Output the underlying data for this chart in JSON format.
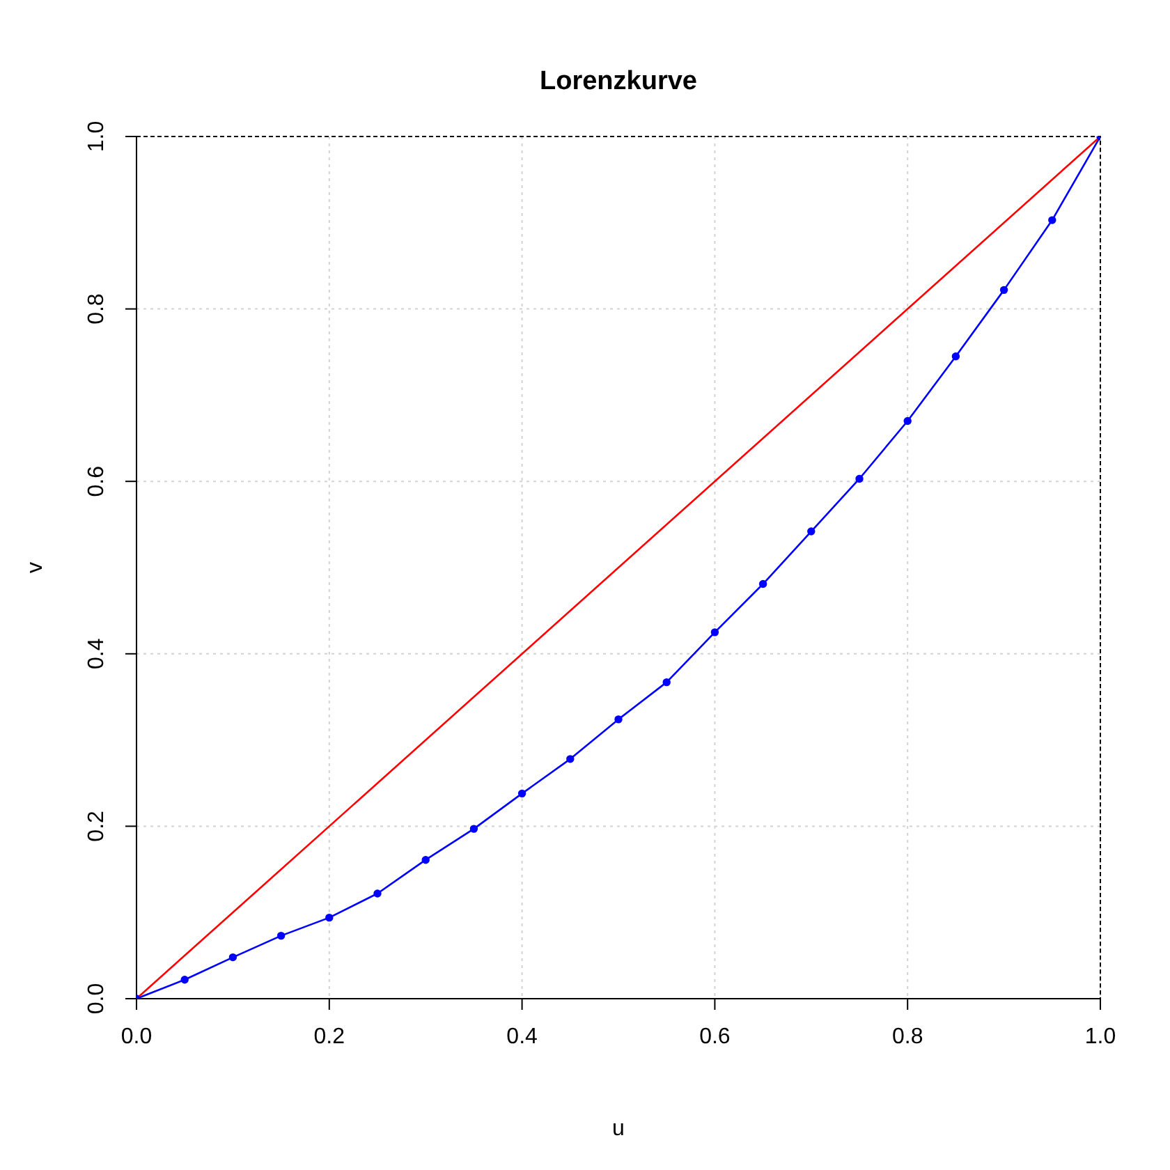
{
  "chart_data": {
    "type": "line",
    "title": "Lorenzkurve",
    "xlabel": "u",
    "ylabel": "v",
    "xlim": [
      0,
      1
    ],
    "ylim": [
      0,
      1
    ],
    "xticks": [
      {
        "value": 0,
        "label": "0.0"
      },
      0.2,
      0.4,
      0.6,
      0.8,
      {
        "value": 1,
        "label": "1.0"
      }
    ],
    "yticks": [
      {
        "value": 0,
        "label": "0.0"
      },
      0.2,
      0.4,
      0.6,
      0.8,
      {
        "value": 1,
        "label": "1.0"
      }
    ],
    "grid": true,
    "series": [
      {
        "color": "#0000ff",
        "marker": "circle",
        "x": [
          0,
          0.05,
          0.1,
          0.15,
          0.2,
          0.25,
          0.3,
          0.35,
          0.4,
          0.45,
          0.5,
          0.55,
          0.6,
          0.65,
          0.7,
          0.75,
          0.8,
          0.85,
          0.9,
          0.95,
          1
        ],
        "values": [
          0,
          0.022,
          0.048,
          0.073,
          0.094,
          0.122,
          0.161,
          0.197,
          0.238,
          0.278,
          0.324,
          0.367,
          0.425,
          0.481,
          0.542,
          0.603,
          0.67,
          0.745,
          0.822,
          0.903,
          1
        ]
      },
      {
        "color": "#ff0000",
        "marker": "none",
        "x": [
          0,
          1
        ],
        "values": [
          0,
          1
        ]
      }
    ]
  }
}
